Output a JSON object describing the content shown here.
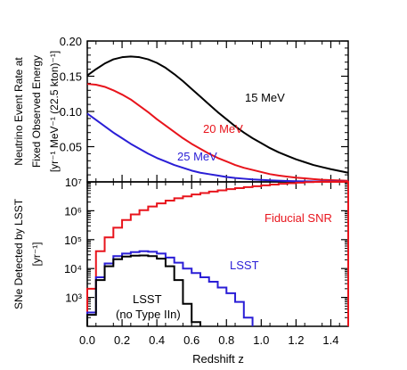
{
  "chart_data": [
    {
      "type": "line",
      "panel": "top",
      "ylabel_lines": [
        "Neutrino Event Rate at",
        "Fixed Observed Energy",
        "[yr⁻¹ MeV⁻¹ (22.5 kton)⁻¹]"
      ],
      "xlim": [
        0.0,
        1.5
      ],
      "ylim": [
        0.0,
        0.2
      ],
      "yticks": [
        0.05,
        0.1,
        0.15,
        0.2
      ],
      "ytick_labels": [
        "0.05",
        "0.10",
        "0.15",
        "0.20"
      ],
      "series": [
        {
          "name": "15 MeV",
          "color": "#000000",
          "x": [
            0.0,
            0.05,
            0.1,
            0.15,
            0.2,
            0.25,
            0.3,
            0.35,
            0.4,
            0.45,
            0.5,
            0.55,
            0.6,
            0.65,
            0.7,
            0.75,
            0.8,
            0.85,
            0.9,
            0.95,
            1.0,
            1.05,
            1.1,
            1.15,
            1.2,
            1.25,
            1.3,
            1.35,
            1.4,
            1.45,
            1.5
          ],
          "y": [
            0.151,
            0.16,
            0.168,
            0.174,
            0.177,
            0.178,
            0.177,
            0.174,
            0.169,
            0.162,
            0.153,
            0.143,
            0.132,
            0.121,
            0.11,
            0.099,
            0.089,
            0.079,
            0.07,
            0.062,
            0.055,
            0.048,
            0.042,
            0.037,
            0.032,
            0.028,
            0.024,
            0.021,
            0.018,
            0.0155,
            0.013
          ]
        },
        {
          "name": "20 MeV",
          "color": "#e8141c",
          "x": [
            0.0,
            0.05,
            0.1,
            0.15,
            0.2,
            0.25,
            0.3,
            0.35,
            0.4,
            0.45,
            0.5,
            0.55,
            0.6,
            0.65,
            0.7,
            0.75,
            0.8,
            0.85,
            0.9,
            0.95,
            1.0,
            1.05,
            1.1,
            1.15,
            1.2,
            1.25,
            1.3,
            1.35,
            1.4,
            1.45,
            1.5
          ],
          "y": [
            0.139,
            0.138,
            0.135,
            0.13,
            0.124,
            0.117,
            0.108,
            0.099,
            0.089,
            0.08,
            0.071,
            0.062,
            0.054,
            0.047,
            0.04,
            0.034,
            0.029,
            0.024,
            0.02,
            0.017,
            0.014,
            0.011,
            0.009,
            0.0075,
            0.006,
            0.005,
            0.004,
            0.003,
            0.0025,
            0.002,
            0.0015
          ]
        },
        {
          "name": "25 MeV",
          "color": "#2a1ed6",
          "x": [
            0.0,
            0.05,
            0.1,
            0.15,
            0.2,
            0.25,
            0.3,
            0.35,
            0.4,
            0.45,
            0.5,
            0.55,
            0.6,
            0.65,
            0.7,
            0.75,
            0.8,
            0.85,
            0.9,
            0.95,
            1.0,
            1.05,
            1.1,
            1.15,
            1.2,
            1.25,
            1.3,
            1.35,
            1.4,
            1.45,
            1.5
          ],
          "y": [
            0.097,
            0.088,
            0.079,
            0.07,
            0.062,
            0.054,
            0.047,
            0.04,
            0.034,
            0.029,
            0.024,
            0.02,
            0.016,
            0.013,
            0.011,
            0.009,
            0.007,
            0.0055,
            0.0045,
            0.0035,
            0.0028,
            0.0022,
            0.0017,
            0.0013,
            0.001,
            0.0008,
            0.0006,
            0.0005,
            0.0004,
            0.0003,
            0.0002
          ]
        }
      ]
    },
    {
      "type": "step",
      "panel": "bottom",
      "ylabel_lines": [
        "SNe Detected by LSST",
        "[yr⁻¹]"
      ],
      "xlabel": "Redshift z",
      "xlim": [
        0.0,
        1.5
      ],
      "ylim_log": [
        2.0,
        7.0
      ],
      "yscale": "log",
      "yticks_exp": [
        3,
        4,
        5,
        6,
        7
      ],
      "ytick_labels": [
        "10³",
        "10⁴",
        "10⁵",
        "10⁶",
        "10⁷"
      ],
      "xticks": [
        0.0,
        0.2,
        0.4,
        0.6,
        0.8,
        1.0,
        1.2,
        1.4
      ],
      "xtick_labels": [
        "0.0",
        "0.2",
        "0.4",
        "0.6",
        "0.8",
        "1.0",
        "1.2",
        "1.4"
      ],
      "bin_width": 0.05,
      "series": [
        {
          "name": "Fiducial SNR",
          "color": "#e8141c",
          "bin_starts": [
            0.0,
            0.05,
            0.1,
            0.15,
            0.2,
            0.25,
            0.3,
            0.35,
            0.4,
            0.45,
            0.5,
            0.55,
            0.6,
            0.65,
            0.7,
            0.75,
            0.8,
            0.85,
            0.9,
            0.95,
            1.0,
            1.05,
            1.1,
            1.15,
            1.2,
            1.25,
            1.3,
            1.35,
            1.4,
            1.45
          ],
          "values": [
            2000,
            40000,
            120000,
            260000,
            480000,
            750000,
            1050000,
            1400000,
            1800000,
            2250000,
            2700000,
            3150000,
            3650000,
            4100000,
            4600000,
            5100000,
            5600000,
            6100000,
            6600000,
            7100000,
            7600000,
            8100000,
            8600000,
            9000000,
            9400000,
            9800000,
            10200000,
            10500000,
            10800000,
            11000000
          ]
        },
        {
          "name": "LSST",
          "color": "#2a1ed6",
          "bin_starts": [
            0.0,
            0.05,
            0.1,
            0.15,
            0.2,
            0.25,
            0.3,
            0.35,
            0.4,
            0.45,
            0.5,
            0.55,
            0.6,
            0.65,
            0.7,
            0.75,
            0.8,
            0.85,
            0.9
          ],
          "values": [
            300,
            5000,
            15000,
            27000,
            33000,
            37000,
            40000,
            38000,
            33000,
            24000,
            16000,
            10000,
            7000,
            5000,
            3500,
            2200,
            1400,
            700,
            200
          ]
        },
        {
          "name": "LSST (no Type IIn)",
          "color": "#000000",
          "bin_starts": [
            0.0,
            0.05,
            0.1,
            0.15,
            0.2,
            0.25,
            0.3,
            0.35,
            0.4,
            0.45,
            0.5,
            0.55,
            0.6
          ],
          "values": [
            250,
            4000,
            12000,
            21000,
            26000,
            28000,
            28500,
            27000,
            22000,
            12000,
            4000,
            600,
            140
          ]
        }
      ]
    }
  ],
  "labels": {
    "top_15": "15 MeV",
    "top_20": "20 MeV",
    "top_25": "25 MeV",
    "fiducial": "Fiducial SNR",
    "lsst": "LSST",
    "lsst_no_iin_1": "LSST",
    "lsst_no_iin_2": "(no Type IIn)",
    "top_ylabel_1": "Neutrino Event Rate at",
    "top_ylabel_2": "Fixed Observed Energy",
    "top_ylabel_3": "[yr⁻¹ MeV⁻¹ (22.5 kton)⁻¹]",
    "bot_ylabel_1": "SNe Detected by LSST",
    "bot_ylabel_2": "[yr⁻¹]",
    "xlabel": "Redshift z"
  },
  "colors": {
    "black": "#000000",
    "red": "#e8141c",
    "blue": "#2a1ed6"
  }
}
